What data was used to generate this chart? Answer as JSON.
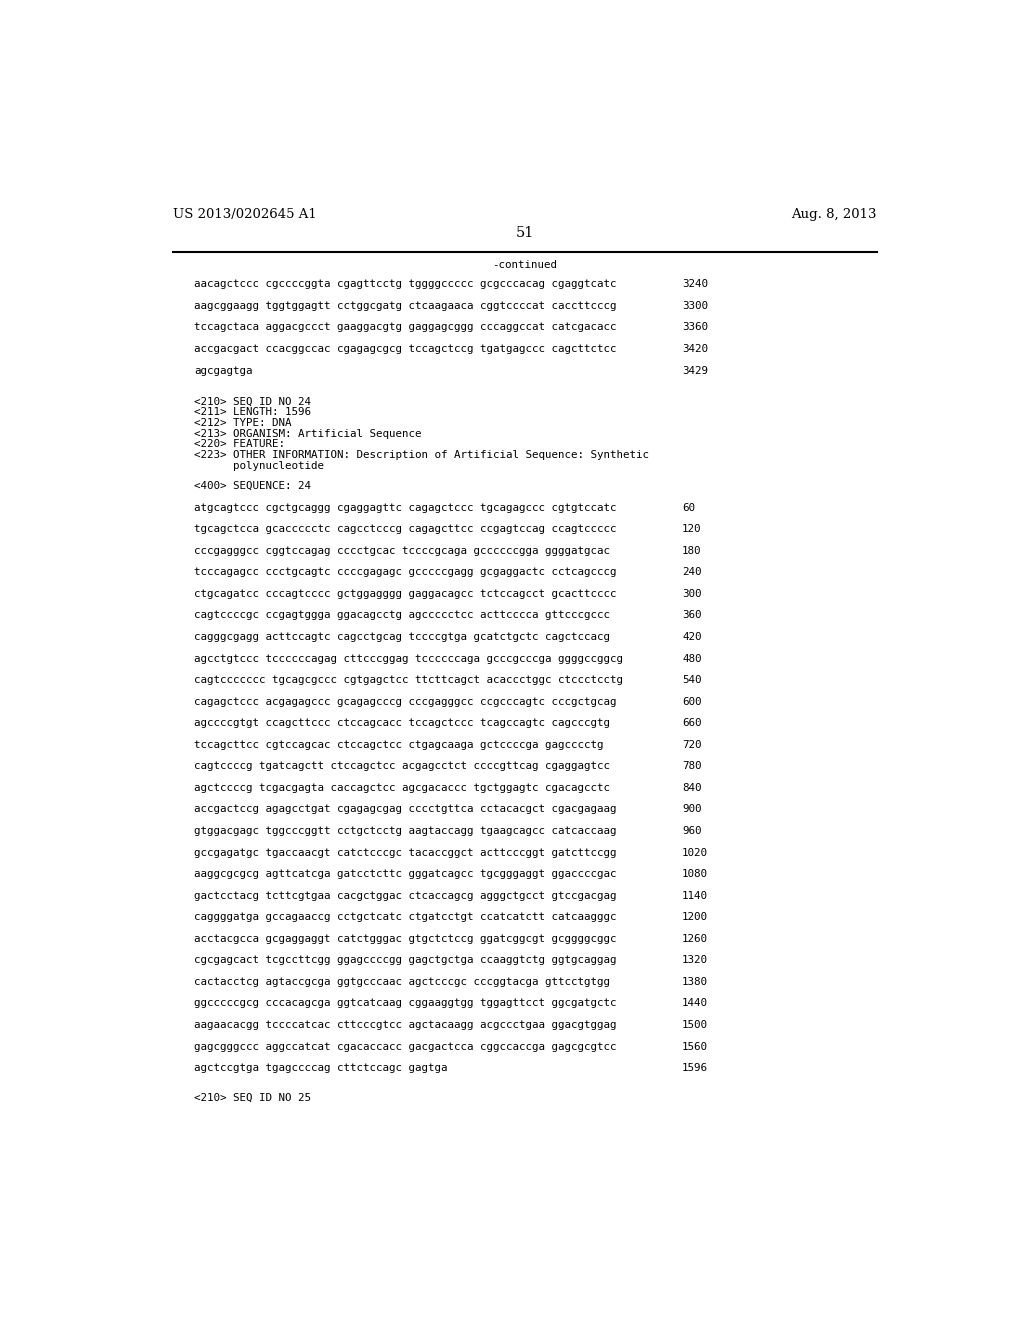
{
  "header_left": "US 2013/0202645 A1",
  "header_right": "Aug. 8, 2013",
  "page_number": "51",
  "continued_label": "-continued",
  "background_color": "#ffffff",
  "text_color": "#000000",
  "font_size_header": 9.5,
  "font_size_body": 7.8,
  "font_size_page": 10.5,
  "sequence_lines": [
    [
      "aacagctccc cgccccggta cgagttcctg tggggccccc gcgcccacag cgaggtcatc",
      "3240"
    ],
    [
      "aagcggaagg tggtggagtt cctggcgatg ctcaagaaca cggtccccat caccttcccg",
      "3300"
    ],
    [
      "tccagctaca aggacgccct gaaggacgtg gaggagcggg cccaggccat catcgacacc",
      "3360"
    ],
    [
      "accgacgact ccacggccac cgagagcgcg tccagctccg tgatgagccc cagcttctcc",
      "3420"
    ],
    [
      "agcgagtga",
      "3429"
    ]
  ],
  "metadata_lines": [
    "<210> SEQ ID NO 24",
    "<211> LENGTH: 1596",
    "<212> TYPE: DNA",
    "<213> ORGANISM: Artificial Sequence",
    "<220> FEATURE:",
    "<223> OTHER INFORMATION: Description of Artificial Sequence: Synthetic",
    "      polynucleotide"
  ],
  "sequence_label": "<400> SEQUENCE: 24",
  "sequence_data": [
    [
      "atgcagtccc cgctgcaggg cgaggagttc cagagctccc tgcagagccc cgtgtccatc",
      "60"
    ],
    [
      "tgcagctcca gcaccccctc cagcctcccg cagagcttcc ccgagtccag ccagtccccc",
      "120"
    ],
    [
      "cccgagggcc cggtccagag cccctgcac tccccgcaga gccccccgga ggggatgcac",
      "180"
    ],
    [
      "tcccagagcc ccctgcagtc ccccgagagc gcccccgagg gcgaggactc cctcagcccg",
      "240"
    ],
    [
      "ctgcagatcc cccagtcccc gctggagggg gaggacagcc tctccagcct gcacttcccc",
      "300"
    ],
    [
      "cagtccccgc ccgagtggga ggacagcctg agccccctcc acttcccca gttcccgccc",
      "360"
    ],
    [
      "cagggcgagg acttccagtc cagcctgcag tccccgtga gcatctgctc cagctccacg",
      "420"
    ],
    [
      "agcctgtccc tccccccagag cttcccggag tccccccaga gcccgcccga ggggccggcg",
      "480"
    ],
    [
      "cagtccccccc tgcagcgccc cgtgagctcc ttcttcagct acaccctggc ctccctcctg",
      "540"
    ],
    [
      "cagagctccc acgagagccc gcagagcccg cccgagggcc ccgcccagtc cccgctgcag",
      "600"
    ],
    [
      "agccccgtgt ccagcttccc ctccagcacc tccagctccc tcagccagtc cagcccgtg",
      "660"
    ],
    [
      "tccagcttcc cgtccagcac ctccagctcc ctgagcaaga gctccccga gagcccctg",
      "720"
    ],
    [
      "cagtccccg tgatcagctt ctccagctcc acgagcctct ccccgttcag cgaggagtcc",
      "780"
    ],
    [
      "agctccccg tcgacgagta caccagctcc agcgacaccc tgctggagtc cgacagcctc",
      "840"
    ],
    [
      "accgactccg agagcctgat cgagagcgag cccctgttca cctacacgct cgacgagaag",
      "900"
    ],
    [
      "gtggacgagc tggcccggtt cctgctcctg aagtaccagg tgaagcagcc catcaccaag",
      "960"
    ],
    [
      "gccgagatgc tgaccaacgt catctcccgc tacaccggct acttcccggt gatcttccgg",
      "1020"
    ],
    [
      "aaggcgcgcg agttcatcga gatcctcttc gggatcagcc tgcgggaggt ggaccccgac",
      "1080"
    ],
    [
      "gactcctacg tcttcgtgaa cacgctggac ctcaccagcg agggctgcct gtccgacgag",
      "1140"
    ],
    [
      "caggggatga gccagaaccg cctgctcatc ctgatcctgt ccatcatctt catcaagggc",
      "1200"
    ],
    [
      "acctacgcca gcgaggaggt catctgggac gtgctctccg ggatcggcgt gcggggcggc",
      "1260"
    ],
    [
      "cgcgagcact tcgccttcgg ggagccccgg gagctgctga ccaaggtctg ggtgcaggag",
      "1320"
    ],
    [
      "cactacctcg agtaccgcga ggtgcccaac agctcccgc cccggtacga gttcctgtgg",
      "1380"
    ],
    [
      "ggcccccgcg cccacagcga ggtcatcaag cggaaggtgg tggagttcct ggcgatgctc",
      "1440"
    ],
    [
      "aagaacacgg tccccatcac cttcccgtcc agctacaagg acgccctgaa ggacgtggag",
      "1500"
    ],
    [
      "gagcgggccc aggccatcat cgacaccacc gacgactcca cggccaccga gagcgcgtcc",
      "1560"
    ],
    [
      "agctccgtga tgagccccag cttctccagc gagtga",
      "1596"
    ]
  ],
  "footer_line": "<210> SEQ ID NO 25"
}
